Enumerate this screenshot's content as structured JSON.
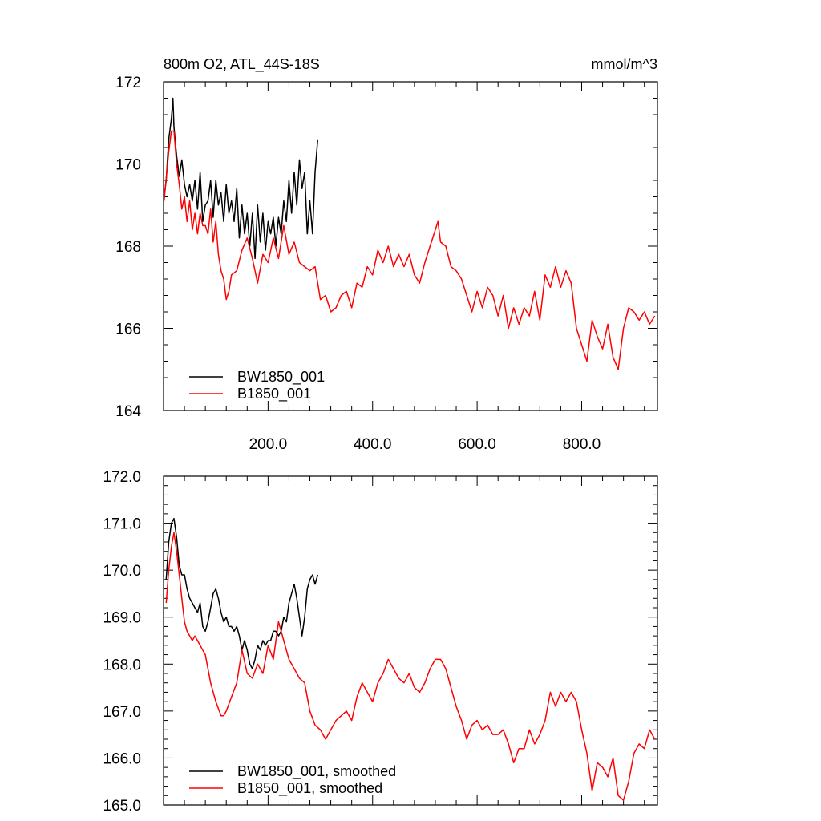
{
  "chart_data": [
    {
      "type": "line",
      "title": "800m O2, ATL_44S-18S",
      "units": "mmol/m^3",
      "xlim": [
        0,
        945
      ],
      "ylim": [
        164,
        172
      ],
      "y_ticks": [
        "164",
        "166",
        "168",
        "170",
        "172"
      ],
      "x_ticks": [
        "200.0",
        "400.0",
        "600.0",
        "800.0"
      ],
      "legend_position": "bottom-left",
      "grid": false,
      "series": [
        {
          "name": "BW1850_001",
          "color": "#000000",
          "x": [
            1,
            5,
            10,
            15,
            18,
            20,
            25,
            30,
            35,
            40,
            45,
            50,
            55,
            60,
            65,
            70,
            75,
            80,
            85,
            90,
            95,
            100,
            105,
            110,
            115,
            120,
            125,
            130,
            135,
            140,
            145,
            150,
            155,
            160,
            165,
            170,
            175,
            180,
            185,
            190,
            195,
            200,
            205,
            210,
            215,
            220,
            225,
            230,
            235,
            240,
            245,
            250,
            255,
            260,
            265,
            270,
            275,
            280,
            285,
            290,
            295
          ],
          "y": [
            169.2,
            169.6,
            170.6,
            171.1,
            171.6,
            170.9,
            170.2,
            169.7,
            170.1,
            169.5,
            169.2,
            169.5,
            169.1,
            169.6,
            168.9,
            169.8,
            168.6,
            169.0,
            169.1,
            169.6,
            168.7,
            169.6,
            169.0,
            169.3,
            168.6,
            169.5,
            168.8,
            169.1,
            168.6,
            169.4,
            168.2,
            169.0,
            168.3,
            168.8,
            168.0,
            168.8,
            167.7,
            169.0,
            168.1,
            168.8,
            167.9,
            168.6,
            168.3,
            168.7,
            168.0,
            168.7,
            168.3,
            169.1,
            168.6,
            169.6,
            168.8,
            169.8,
            169.0,
            170.1,
            169.4,
            169.8,
            168.3,
            169.1,
            168.3,
            169.8,
            170.6
          ]
        },
        {
          "name": "B1850_001",
          "color": "#ff0000",
          "x": [
            1,
            10,
            15,
            20,
            25,
            30,
            35,
            40,
            45,
            50,
            55,
            60,
            65,
            70,
            75,
            80,
            85,
            90,
            95,
            100,
            105,
            110,
            115,
            120,
            125,
            130,
            140,
            150,
            160,
            170,
            180,
            190,
            200,
            210,
            220,
            230,
            240,
            250,
            260,
            270,
            280,
            290,
            300,
            310,
            320,
            330,
            340,
            350,
            360,
            370,
            380,
            390,
            400,
            410,
            420,
            430,
            440,
            450,
            460,
            470,
            480,
            490,
            500,
            510,
            520,
            525,
            530,
            540,
            550,
            560,
            570,
            580,
            590,
            600,
            610,
            620,
            630,
            640,
            650,
            660,
            670,
            680,
            690,
            700,
            710,
            720,
            730,
            740,
            750,
            760,
            770,
            780,
            790,
            800,
            810,
            820,
            830,
            840,
            850,
            860,
            870,
            880,
            890,
            900,
            910,
            920,
            930,
            940
          ],
          "y": [
            169.1,
            170.3,
            170.8,
            170.8,
            170.0,
            169.5,
            168.9,
            169.2,
            168.6,
            169.1,
            168.4,
            168.8,
            168.3,
            168.8,
            168.5,
            168.5,
            168.3,
            168.9,
            168.1,
            168.6,
            167.8,
            167.4,
            167.2,
            166.7,
            166.9,
            167.3,
            167.4,
            167.9,
            168.2,
            167.7,
            167.1,
            167.8,
            167.6,
            168.2,
            167.7,
            168.5,
            167.8,
            168.1,
            167.6,
            167.5,
            167.4,
            167.5,
            166.7,
            166.8,
            166.4,
            166.5,
            166.8,
            166.9,
            166.5,
            167.1,
            167.0,
            167.5,
            167.3,
            167.9,
            167.6,
            168.0,
            167.5,
            167.8,
            167.5,
            167.8,
            167.3,
            167.1,
            167.6,
            168.0,
            168.4,
            168.6,
            168.1,
            168.0,
            167.5,
            167.4,
            167.2,
            166.8,
            166.4,
            166.9,
            166.5,
            167.0,
            166.8,
            166.3,
            166.8,
            166.0,
            166.5,
            166.1,
            166.5,
            166.3,
            166.9,
            166.2,
            167.3,
            167.0,
            167.5,
            167.0,
            167.4,
            167.1,
            166.0,
            165.6,
            165.2,
            166.2,
            165.8,
            165.5,
            166.1,
            165.3,
            165.0,
            166.0,
            166.5,
            166.4,
            166.2,
            166.4,
            166.1,
            166.3
          ]
        }
      ]
    },
    {
      "type": "line",
      "ylim": [
        165,
        172
      ],
      "xlim": [
        0,
        945
      ],
      "y_ticks": [
        "165.0",
        "166.0",
        "167.0",
        "168.0",
        "169.0",
        "170.0",
        "171.0",
        "172.0"
      ],
      "legend_position": "bottom-left",
      "grid": false,
      "series": [
        {
          "name": "BW1850_001, smoothed",
          "color": "#000000",
          "x": [
            5,
            10,
            15,
            20,
            25,
            30,
            35,
            40,
            45,
            50,
            55,
            60,
            65,
            70,
            75,
            80,
            85,
            90,
            95,
            100,
            105,
            110,
            115,
            120,
            125,
            130,
            135,
            140,
            145,
            150,
            155,
            160,
            165,
            170,
            175,
            180,
            185,
            190,
            195,
            200,
            205,
            210,
            215,
            220,
            225,
            230,
            235,
            240,
            245,
            250,
            255,
            260,
            265,
            270,
            275,
            280,
            285,
            290,
            295
          ],
          "y": [
            169.8,
            170.6,
            171.0,
            171.1,
            170.7,
            170.1,
            169.9,
            169.9,
            169.6,
            169.4,
            169.3,
            169.2,
            169.1,
            169.3,
            168.8,
            168.7,
            168.9,
            169.2,
            169.5,
            169.6,
            169.4,
            169.1,
            168.9,
            169.0,
            168.8,
            168.8,
            168.7,
            168.8,
            168.6,
            168.3,
            168.5,
            168.3,
            168.0,
            167.9,
            168.1,
            168.4,
            168.3,
            168.5,
            168.4,
            168.5,
            168.5,
            168.7,
            168.7,
            168.6,
            168.7,
            169.0,
            168.9,
            169.3,
            169.5,
            169.7,
            169.4,
            169.0,
            168.6,
            169.0,
            169.6,
            169.8,
            169.9,
            169.7,
            169.9
          ]
        },
        {
          "name": "B1850_001, smoothed",
          "color": "#ff0000",
          "x": [
            5,
            10,
            15,
            20,
            25,
            30,
            35,
            40,
            45,
            50,
            55,
            60,
            70,
            80,
            90,
            100,
            110,
            115,
            120,
            130,
            140,
            150,
            160,
            170,
            180,
            190,
            200,
            210,
            220,
            230,
            240,
            250,
            260,
            270,
            280,
            290,
            300,
            310,
            320,
            330,
            340,
            350,
            360,
            370,
            380,
            390,
            400,
            410,
            420,
            430,
            440,
            450,
            460,
            470,
            480,
            490,
            500,
            510,
            520,
            530,
            540,
            550,
            560,
            570,
            580,
            590,
            600,
            610,
            620,
            630,
            640,
            650,
            660,
            670,
            680,
            690,
            700,
            710,
            720,
            730,
            740,
            750,
            760,
            770,
            780,
            790,
            800,
            810,
            820,
            830,
            840,
            850,
            860,
            870,
            880,
            890,
            900,
            910,
            920,
            930,
            940
          ],
          "y": [
            169.3,
            170.0,
            170.5,
            170.8,
            170.4,
            169.9,
            169.4,
            168.9,
            168.7,
            168.6,
            168.5,
            168.6,
            168.4,
            168.2,
            167.6,
            167.2,
            166.9,
            166.9,
            167.0,
            167.3,
            167.6,
            168.3,
            167.8,
            167.7,
            168.0,
            167.8,
            168.4,
            168.1,
            168.9,
            168.5,
            168.1,
            167.9,
            167.7,
            167.6,
            167.0,
            166.7,
            166.6,
            166.4,
            166.6,
            166.8,
            166.9,
            167.0,
            166.8,
            167.3,
            167.6,
            167.4,
            167.2,
            167.6,
            167.8,
            168.1,
            167.9,
            167.7,
            167.6,
            167.8,
            167.5,
            167.4,
            167.6,
            167.9,
            168.1,
            168.1,
            167.9,
            167.5,
            167.1,
            166.8,
            166.4,
            166.7,
            166.8,
            166.6,
            166.7,
            166.5,
            166.5,
            166.6,
            166.3,
            165.9,
            166.2,
            166.2,
            166.6,
            166.3,
            166.5,
            166.8,
            167.4,
            167.1,
            167.4,
            167.2,
            167.4,
            167.2,
            166.6,
            166.1,
            165.3,
            165.9,
            165.8,
            165.6,
            166.0,
            165.2,
            165.1,
            165.5,
            166.1,
            166.3,
            166.2,
            166.6,
            166.4
          ]
        }
      ]
    }
  ]
}
